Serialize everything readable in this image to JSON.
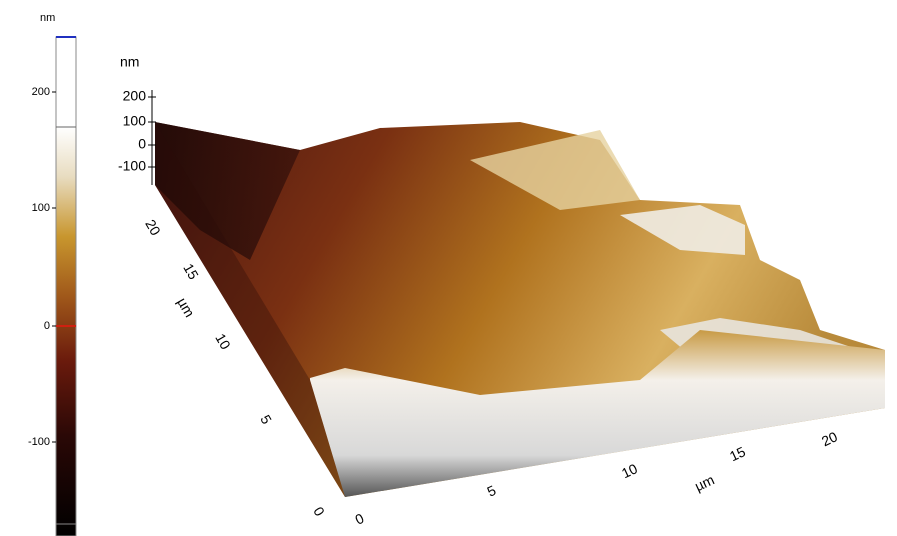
{
  "colorbar": {
    "unit": "nm",
    "ticks": [
      200,
      100,
      0,
      -100
    ]
  },
  "z_axis": {
    "unit": "nm",
    "ticks": [
      200,
      100,
      0,
      -100
    ]
  },
  "y_axis": {
    "unit": "µm",
    "ticks": [
      0,
      5,
      10,
      15,
      20
    ]
  },
  "x_axis": {
    "unit": "µm",
    "ticks": [
      0,
      5,
      10,
      15,
      20
    ]
  }
}
